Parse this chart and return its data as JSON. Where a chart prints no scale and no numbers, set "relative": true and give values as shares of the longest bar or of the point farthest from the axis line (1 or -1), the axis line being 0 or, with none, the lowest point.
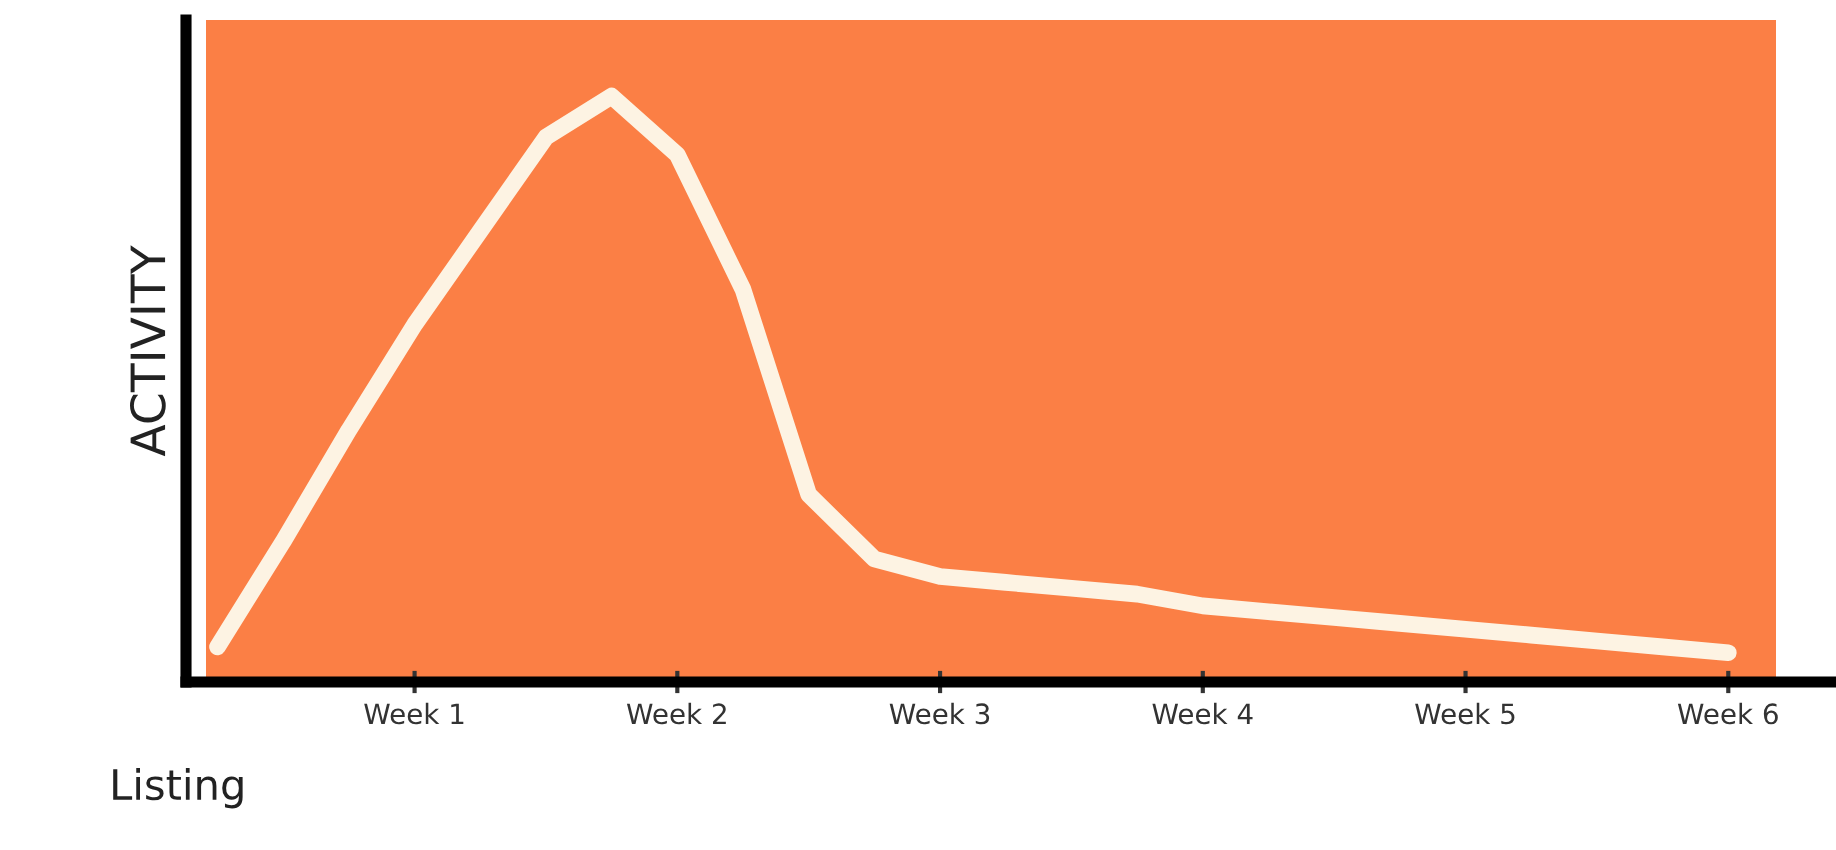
{
  "chart_data": {
    "type": "line",
    "relative": true,
    "xlabel": "Listing",
    "ylabel": "ACTIVITY",
    "categories": [
      null,
      null,
      null,
      "Week 1",
      null,
      null,
      null,
      "Week 2",
      null,
      null,
      null,
      "Week 3",
      null,
      null,
      null,
      "Week 4",
      null,
      null,
      null,
      "Week 5",
      null,
      null,
      null,
      "Week 6"
    ],
    "values": [
      0.06,
      0.24,
      0.43,
      0.61,
      0.77,
      0.93,
      1.0,
      0.9,
      0.67,
      0.32,
      0.21,
      0.18,
      0.17,
      0.16,
      0.15,
      0.13,
      0.12,
      0.11,
      0.1,
      0.09,
      0.08,
      0.07,
      0.06,
      0.05
    ],
    "color": "#fdf3e3",
    "grid": false,
    "legend": false,
    "marker": "none",
    "line_style": "solid",
    "tick_labels": "x"
  }
}
